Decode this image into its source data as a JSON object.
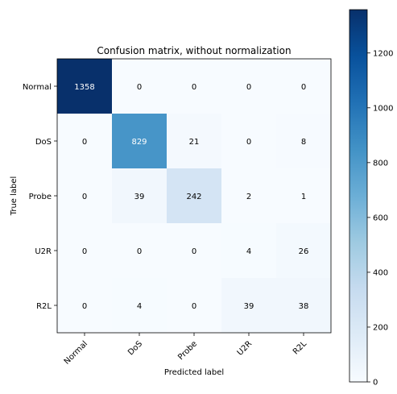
{
  "chart_data": {
    "type": "heatmap",
    "title": "Confusion matrix, without normalization",
    "xlabel": "Predicted label",
    "ylabel": "True label",
    "x_categories": [
      "Normal",
      "DoS",
      "Probe",
      "U2R",
      "R2L"
    ],
    "y_categories": [
      "Normal",
      "DoS",
      "Probe",
      "U2R",
      "R2L"
    ],
    "matrix": [
      [
        1358,
        0,
        0,
        0,
        0
      ],
      [
        0,
        829,
        21,
        0,
        8
      ],
      [
        0,
        39,
        242,
        2,
        1
      ],
      [
        0,
        0,
        0,
        4,
        26
      ],
      [
        0,
        4,
        0,
        39,
        38
      ]
    ],
    "colormap": "Blues",
    "colorbar": {
      "min": 0,
      "max": 1358,
      "ticks": [
        0,
        200,
        400,
        600,
        800,
        1000,
        1200
      ]
    },
    "text_colors": {
      "light": "#ffffff",
      "dark": "#000000"
    }
  }
}
